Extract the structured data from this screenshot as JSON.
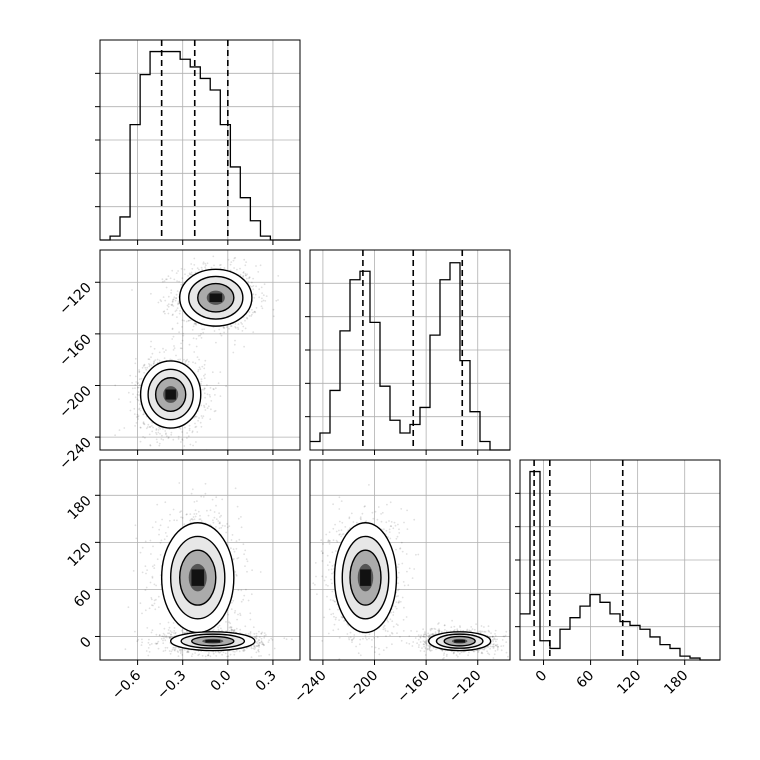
{
  "chart_data": {
    "type": "corner",
    "grid": true,
    "parameters": [
      {
        "id": "p0",
        "range": [
          -0.85,
          0.48
        ],
        "ticks": [
          -0.6,
          -0.3,
          0.0,
          0.3
        ],
        "tick_labels": [
          "−0.6",
          "−0.3",
          "0.0",
          "0.3"
        ]
      },
      {
        "id": "p1",
        "range": [
          -250,
          -95
        ],
        "ticks": [
          -240,
          -200,
          -160,
          -120
        ],
        "tick_labels": [
          "−240",
          "−200",
          "−160",
          "−120"
        ]
      },
      {
        "id": "p2",
        "range": [
          -30,
          225
        ],
        "ticks": [
          0,
          60,
          120,
          180
        ],
        "tick_labels": [
          "0",
          "60",
          "120",
          "180"
        ]
      }
    ],
    "histograms": [
      {
        "param": "p0",
        "bin_edges": [
          -0.85,
          -0.783,
          -0.717,
          -0.65,
          -0.583,
          -0.517,
          -0.45,
          -0.383,
          -0.317,
          -0.25,
          -0.183,
          -0.117,
          -0.05,
          0.017,
          0.083,
          0.15,
          0.217,
          0.283,
          0.35,
          0.417,
          0.483
        ],
        "counts": [
          0,
          1,
          6,
          30,
          43,
          49,
          49,
          49,
          47,
          45,
          42,
          39,
          30,
          19,
          11,
          5,
          1,
          0,
          0,
          0
        ],
        "ymax": 52,
        "quantiles": [
          -0.44,
          -0.22,
          0.0
        ]
      },
      {
        "param": "p1",
        "bin_edges": [
          -250,
          -242.25,
          -234.5,
          -226.75,
          -219,
          -211.25,
          -203.5,
          -195.75,
          -188,
          -180.25,
          -172.5,
          -164.75,
          -157,
          -149.25,
          -141.5,
          -133.75,
          -126,
          -118.25,
          -110.5,
          -102.75,
          -95
        ],
        "counts": [
          2,
          4,
          14,
          28,
          40,
          42,
          30,
          15,
          7,
          4,
          6,
          10,
          27,
          40,
          44,
          21,
          9,
          2,
          0,
          0
        ],
        "ymax": 47,
        "quantiles": [
          -209,
          -170,
          -132
        ]
      },
      {
        "param": "p2",
        "bin_edges": [
          -30,
          -17.25,
          -4.5,
          8.25,
          21,
          33.75,
          46.5,
          59.25,
          72,
          84.75,
          97.5,
          110.25,
          123,
          135.75,
          148.5,
          161.25,
          174,
          186.75,
          199.5,
          212.25,
          225
        ],
        "counts": [
          12,
          49,
          5,
          3,
          8,
          11,
          14,
          17,
          15,
          12,
          10,
          9,
          8,
          6,
          4,
          3,
          1,
          0.5,
          0,
          0
        ],
        "ymax": 52,
        "quantiles": [
          -12,
          8,
          101
        ]
      }
    ],
    "joint": [
      {
        "x": "p0",
        "y": "p1",
        "clusters": [
          {
            "x_center": -0.08,
            "y_center": -132,
            "x_sd": 0.12,
            "y_sd": 11,
            "weight": 0.5
          },
          {
            "x_center": -0.38,
            "y_center": -207,
            "x_sd": 0.1,
            "y_sd": 13,
            "weight": 0.5
          }
        ]
      },
      {
        "x": "p0",
        "y": "p2",
        "clusters": [
          {
            "x_center": -0.2,
            "y_center": 75,
            "x_sd": 0.12,
            "y_sd": 35,
            "weight": 0.5
          },
          {
            "x_center": -0.1,
            "y_center": -6,
            "x_sd": 0.14,
            "y_sd": 6,
            "weight": 0.5
          }
        ]
      },
      {
        "x": "p1",
        "y": "p2",
        "clusters": [
          {
            "x_center": -207,
            "y_center": 75,
            "x_sd": 12,
            "y_sd": 35,
            "weight": 0.5
          },
          {
            "x_center": -134,
            "y_center": -6,
            "x_sd": 12,
            "y_sd": 6,
            "weight": 0.5
          }
        ]
      }
    ]
  }
}
